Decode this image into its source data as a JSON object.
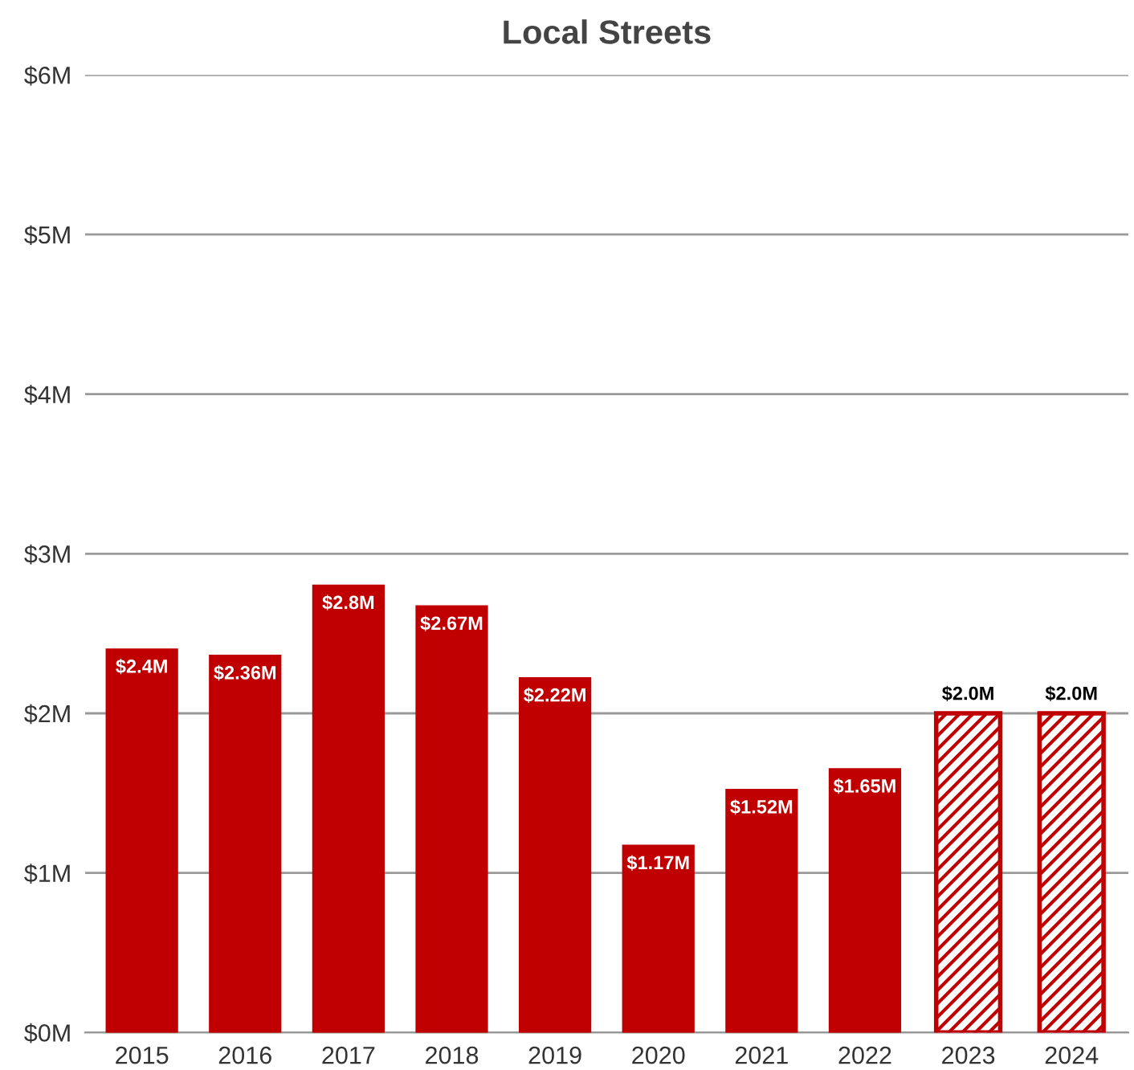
{
  "chart_data": {
    "type": "bar",
    "title": "Local Streets",
    "categories": [
      "2015",
      "2016",
      "2017",
      "2018",
      "2019",
      "2020",
      "2021",
      "2022",
      "2023",
      "2024"
    ],
    "series": [
      {
        "color": "#c00000",
        "values": [
          2.4,
          2.36,
          2.8,
          2.67,
          2.22,
          1.17,
          1.52,
          1.65,
          null,
          null
        ],
        "value_labels": [
          "$2.4M",
          "$2.36M",
          "$2.8M",
          "$2.67M",
          "$2.22M",
          "$1.17M",
          "$1.52M",
          "$1.65M",
          null,
          null
        ]
      },
      {
        "color": "#c00000",
        "values": [
          null,
          null,
          null,
          null,
          null,
          null,
          null,
          null,
          2.0,
          2.0
        ],
        "value_labels": [
          null,
          null,
          null,
          null,
          null,
          null,
          null,
          null,
          "$2.0M",
          "$2.0M"
        ]
      }
    ],
    "ylim": [
      0,
      6
    ],
    "yticks": [
      {
        "value": 0,
        "label": "$0M"
      },
      {
        "value": 1,
        "label": "$1M"
      },
      {
        "value": 2,
        "label": "$2M"
      },
      {
        "value": 3,
        "label": "$3M"
      },
      {
        "value": 4,
        "label": "$4M"
      },
      {
        "value": 5,
        "label": "$5M"
      },
      {
        "value": 6,
        "label": "$6M"
      }
    ],
    "grid": "y",
    "legend": false
  }
}
